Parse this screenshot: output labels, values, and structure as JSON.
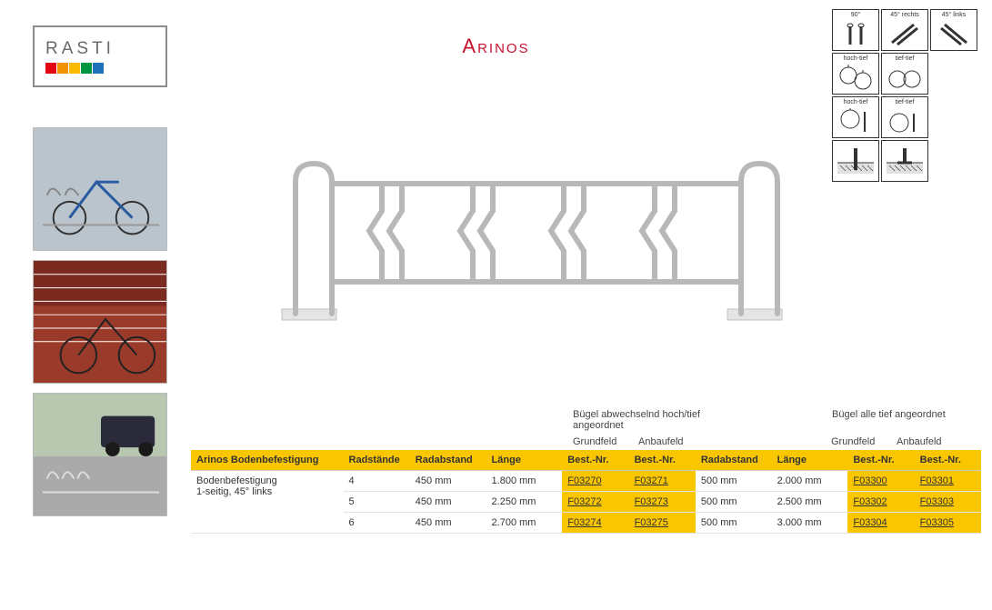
{
  "brand": {
    "name": "RASTI",
    "colors": [
      "#e30613",
      "#f39200",
      "#fbba00",
      "#009640",
      "#1d71b8"
    ]
  },
  "title": {
    "text": "Arinos",
    "color": "#c8102e"
  },
  "thumbnails": [
    {
      "label": "bike-rack-photo-1"
    },
    {
      "label": "bike-rack-photo-2"
    },
    {
      "label": "bike-rack-photo-3"
    }
  ],
  "features": {
    "items": [
      {
        "label": "90°",
        "icon": "angle90"
      },
      {
        "label": "45° rechts",
        "icon": "angle45r"
      },
      {
        "label": "45° links",
        "icon": "angle45l"
      },
      {
        "label": "hoch-tief",
        "icon": "hochtief1"
      },
      {
        "label": "tief-tief",
        "icon": "tieftief1"
      },
      {
        "label": "",
        "icon": "",
        "hidden": true
      },
      {
        "label": "hoch-tief",
        "icon": "hochtief2"
      },
      {
        "label": "tief-tief",
        "icon": "tieftief2"
      },
      {
        "label": "",
        "icon": "",
        "hidden": true
      },
      {
        "label": "",
        "icon": "mount1"
      },
      {
        "label": "",
        "icon": "mount2"
      },
      {
        "label": "",
        "icon": "",
        "hidden": true
      }
    ]
  },
  "table": {
    "group1_label": "Bügel abwechselnd hoch/tief angeordnet",
    "group2_label": "Bügel alle tief angeordnet",
    "sub_grundfeld": "Grundfeld",
    "sub_anbaufeld": "Anbaufeld",
    "columns": {
      "product": "Arinos Bodenbefestigung",
      "radstaende": "Radstände",
      "radabstand": "Radabstand",
      "laenge": "Länge",
      "bestnr": "Best.-Nr."
    },
    "product_desc": "Bodenbefestigung\n1-seitig, 45° links",
    "rows": [
      {
        "radstaende": "4",
        "radabstand1": "450 mm",
        "laenge1": "1.800 mm",
        "code1a": "F03270",
        "code1b": "F03271",
        "radabstand2": "500 mm",
        "laenge2": "2.000 mm",
        "code2a": "F03300",
        "code2b": "F03301"
      },
      {
        "radstaende": "5",
        "radabstand1": "450 mm",
        "laenge1": "2.250 mm",
        "code1a": "F03272",
        "code1b": "F03273",
        "radabstand2": "500 mm",
        "laenge2": "2.500 mm",
        "code2a": "F03302",
        "code2b": "F03303"
      },
      {
        "radstaende": "6",
        "radabstand1": "450 mm",
        "laenge1": "2.700 mm",
        "code1a": "F03274",
        "code1b": "F03275",
        "radabstand2": "500 mm",
        "laenge2": "3.000 mm",
        "code2a": "F03304",
        "code2b": "F03305"
      }
    ],
    "header_bg": "#f9c600",
    "code_bg": "#f9c600"
  },
  "product_render": {
    "stroke": "#c8c8c8",
    "fill": "#e8e8e8"
  }
}
